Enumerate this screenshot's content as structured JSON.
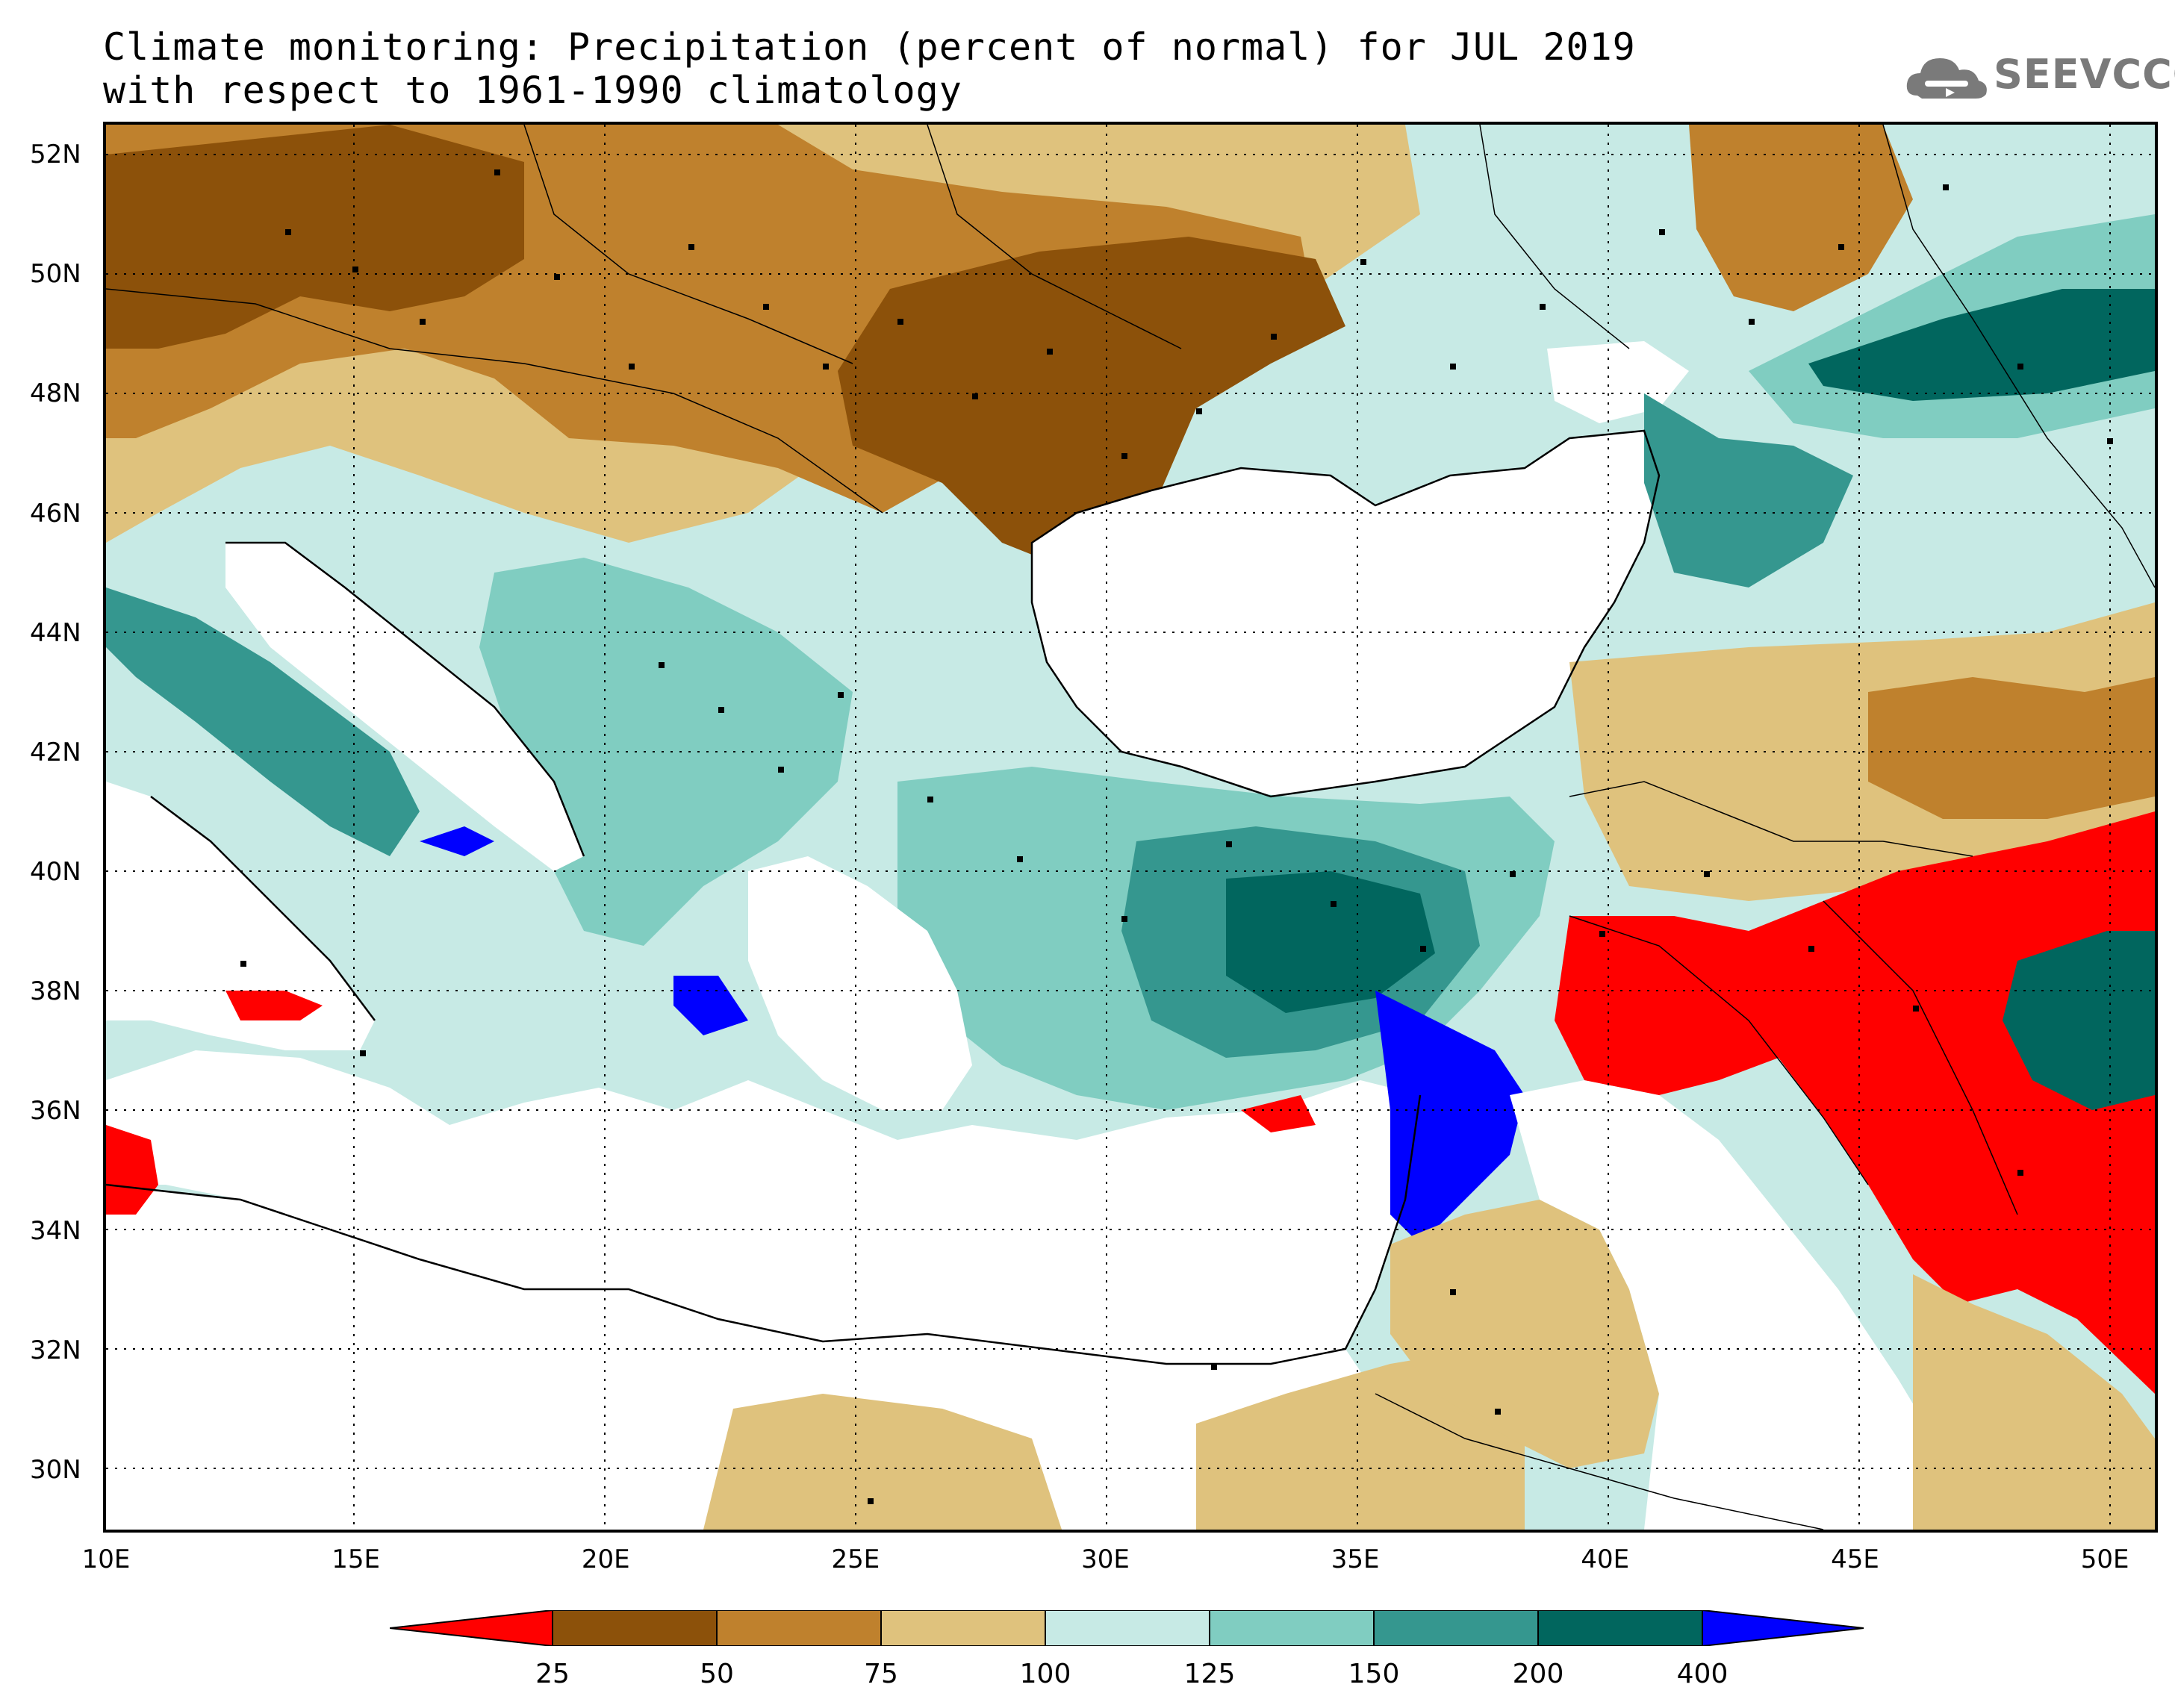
{
  "title": {
    "line1": "Climate monitoring: Precipitation (percent of normal) for JUL 2019",
    "line2": "with respect to 1961-1990 climatology"
  },
  "logo": {
    "text": "SEEVCCC",
    "icon": "cloud-icon",
    "color": "#7a7a7a"
  },
  "map": {
    "projection": "lat-lon",
    "lon_range": [
      10,
      51
    ],
    "lat_range": [
      29,
      52.5
    ],
    "lat_labels": [
      "52N",
      "50N",
      "48N",
      "46N",
      "44N",
      "42N",
      "40N",
      "38N",
      "36N",
      "34N",
      "32N",
      "30N"
    ],
    "lat_values": [
      52,
      50,
      48,
      46,
      44,
      42,
      40,
      38,
      36,
      34,
      32,
      30
    ],
    "lon_labels": [
      "10E",
      "15E",
      "20E",
      "25E",
      "30E",
      "35E",
      "40E",
      "45E",
      "50E"
    ],
    "lon_values": [
      10,
      15,
      20,
      25,
      30,
      35,
      40,
      45,
      50
    ],
    "grid": "dotted",
    "stations": "black-square-markers"
  },
  "colorbar": {
    "labels": [
      "25",
      "50",
      "75",
      "100",
      "125",
      "150",
      "200",
      "400"
    ],
    "bins": [
      {
        "range": "<25",
        "color": "#ff0000"
      },
      {
        "range": "25-50",
        "color": "#8c510a"
      },
      {
        "range": "50-75",
        "color": "#bf812d"
      },
      {
        "range": "75-100",
        "color": "#dfc27d"
      },
      {
        "range": "100-125",
        "color": "#c7eae5"
      },
      {
        "range": "125-150",
        "color": "#80cdc1"
      },
      {
        "range": "150-200",
        "color": "#35978f"
      },
      {
        "range": "200-400",
        "color": "#01665e"
      },
      {
        "range": ">400",
        "color": "#0000ff"
      }
    ]
  }
}
